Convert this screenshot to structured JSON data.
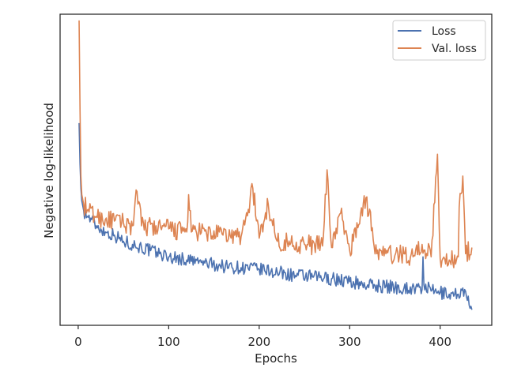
{
  "chart_data": {
    "type": "line",
    "title": "",
    "xlabel": "Epochs",
    "ylabel": "Negative log-likelihood",
    "xlim": [
      -20,
      457
    ],
    "ylim": [
      0,
      100
    ],
    "y_ticks_shown": false,
    "x_ticks": [
      0,
      100,
      200,
      300,
      400
    ],
    "x_tick_labels": [
      "0",
      "100",
      "200",
      "300",
      "400"
    ],
    "grid": false,
    "legend": "top-right",
    "x_range": [
      1,
      435
    ],
    "series": [
      {
        "name": "Loss",
        "color": "#4c72b0",
        "points": [
          [
            1,
            65
          ],
          [
            2,
            52
          ],
          [
            3,
            44
          ],
          [
            4,
            40
          ],
          [
            6,
            37
          ],
          [
            10,
            35
          ],
          [
            15,
            34
          ],
          [
            20,
            32
          ],
          [
            25,
            31
          ],
          [
            30,
            30
          ],
          [
            40,
            29
          ],
          [
            50,
            27
          ],
          [
            60,
            26
          ],
          [
            70,
            25
          ],
          [
            80,
            24
          ],
          [
            90,
            23
          ],
          [
            100,
            22
          ],
          [
            120,
            21
          ],
          [
            140,
            20
          ],
          [
            160,
            19
          ],
          [
            180,
            18.5
          ],
          [
            200,
            18
          ],
          [
            220,
            17
          ],
          [
            240,
            16
          ],
          [
            260,
            15.5
          ],
          [
            280,
            15
          ],
          [
            300,
            14
          ],
          [
            320,
            13
          ],
          [
            340,
            12.5
          ],
          [
            360,
            12
          ],
          [
            380,
            11.5
          ],
          [
            381,
            22
          ],
          [
            382,
            13
          ],
          [
            390,
            11
          ],
          [
            400,
            10.5
          ],
          [
            410,
            10
          ],
          [
            420,
            10
          ],
          [
            425,
            12
          ],
          [
            430,
            8
          ],
          [
            435,
            5
          ]
        ]
      },
      {
        "name": "Val. loss",
        "color": "#dd8452",
        "points": [
          [
            1,
            98
          ],
          [
            2,
            70
          ],
          [
            3,
            48
          ],
          [
            4,
            42
          ],
          [
            6,
            39
          ],
          [
            10,
            37
          ],
          [
            20,
            35
          ],
          [
            30,
            34
          ],
          [
            40,
            33.5
          ],
          [
            50,
            33
          ],
          [
            60,
            32
          ],
          [
            65,
            43
          ],
          [
            70,
            32
          ],
          [
            100,
            31
          ],
          [
            120,
            30
          ],
          [
            122,
            42
          ],
          [
            125,
            30
          ],
          [
            160,
            29
          ],
          [
            180,
            28.5
          ],
          [
            193,
            44
          ],
          [
            200,
            28
          ],
          [
            210,
            39
          ],
          [
            220,
            27
          ],
          [
            250,
            26
          ],
          [
            270,
            25.5
          ],
          [
            275,
            50
          ],
          [
            280,
            25
          ],
          [
            290,
            36
          ],
          [
            300,
            24
          ],
          [
            318,
            41
          ],
          [
            330,
            23
          ],
          [
            340,
            23
          ],
          [
            350,
            22.5
          ],
          [
            360,
            23
          ],
          [
            370,
            22
          ],
          [
            380,
            26
          ],
          [
            390,
            22
          ],
          [
            397,
            55
          ],
          [
            400,
            21.5
          ],
          [
            410,
            21
          ],
          [
            420,
            22
          ],
          [
            421,
            38
          ],
          [
            425,
            48
          ],
          [
            428,
            23
          ],
          [
            435,
            25
          ]
        ]
      }
    ]
  }
}
